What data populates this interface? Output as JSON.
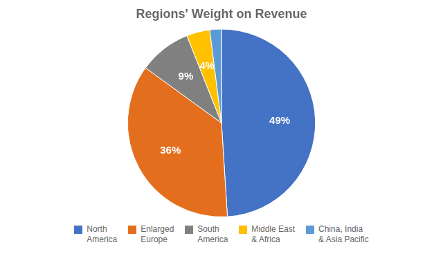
{
  "chart_data": {
    "type": "pie",
    "title": "Regions' Weight on Revenue",
    "categories": [
      "North\nAmerica",
      "Enlarged\nEurope",
      "South\nAmerica",
      "Middle East\n& Africa",
      "China, India\n& Asia Pacific"
    ],
    "values": [
      49,
      36,
      9,
      4,
      2
    ],
    "value_labels": [
      "49%",
      "36%",
      "9%",
      "4%",
      null
    ],
    "data_labels": true,
    "colors": [
      "#4472c4",
      "#e36f1e",
      "#808080",
      "#ffc000",
      "#5b9bd5"
    ],
    "legend": "bottom"
  }
}
